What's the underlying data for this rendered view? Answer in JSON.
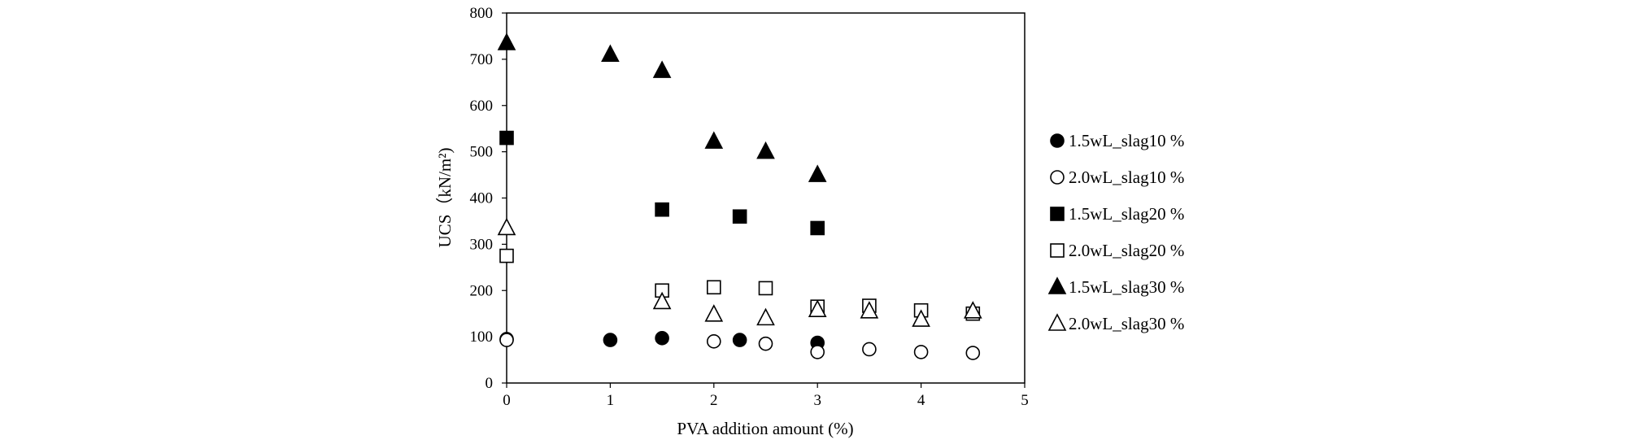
{
  "chart_data": {
    "type": "scatter",
    "xlabel": "PVA addition amount (%)",
    "ylabel": "UCS（kN/m²)",
    "xlim": [
      0,
      5
    ],
    "ylim": [
      0,
      800
    ],
    "xticks": [
      "0",
      "1",
      "2",
      "3",
      "4",
      "5"
    ],
    "yticks": [
      "0",
      "100",
      "200",
      "300",
      "400",
      "500",
      "600",
      "700",
      "800"
    ],
    "grid": false,
    "legend_position": "right",
    "series": [
      {
        "name": "1.5wL_slag10 %",
        "marker": "circle-filled",
        "points": [
          [
            0,
            95
          ],
          [
            1,
            93
          ],
          [
            1.5,
            97
          ],
          [
            2.25,
            93
          ],
          [
            3,
            87
          ]
        ]
      },
      {
        "name": "2.0wL_slag10 %",
        "marker": "circle-open",
        "points": [
          [
            0,
            93
          ],
          [
            2,
            90
          ],
          [
            2.5,
            85
          ],
          [
            3,
            67
          ],
          [
            3.5,
            73
          ],
          [
            4,
            67
          ],
          [
            4.5,
            65
          ]
        ]
      },
      {
        "name": "1.5wL_slag20 %",
        "marker": "square-filled",
        "points": [
          [
            0,
            530
          ],
          [
            1.5,
            375
          ],
          [
            2.25,
            360
          ],
          [
            3,
            335
          ]
        ]
      },
      {
        "name": "2.0wL_slag20 %",
        "marker": "square-open",
        "points": [
          [
            0,
            275
          ],
          [
            1.5,
            200
          ],
          [
            2,
            207
          ],
          [
            2.5,
            205
          ],
          [
            3,
            165
          ],
          [
            3.5,
            167
          ],
          [
            4,
            157
          ],
          [
            4.5,
            150
          ]
        ]
      },
      {
        "name": "1.5wL_slag30 %",
        "marker": "triangle-filled",
        "points": [
          [
            0,
            735
          ],
          [
            1,
            710
          ],
          [
            1.5,
            675
          ],
          [
            2,
            522
          ],
          [
            2.5,
            500
          ],
          [
            3,
            450
          ]
        ]
      },
      {
        "name": "2.0wL_slag30 %",
        "marker": "triangle-open",
        "points": [
          [
            0,
            335
          ],
          [
            1.5,
            175
          ],
          [
            2,
            148
          ],
          [
            2.5,
            140
          ],
          [
            3,
            158
          ],
          [
            3.5,
            155
          ],
          [
            4,
            137
          ],
          [
            4.5,
            155
          ]
        ]
      }
    ]
  }
}
